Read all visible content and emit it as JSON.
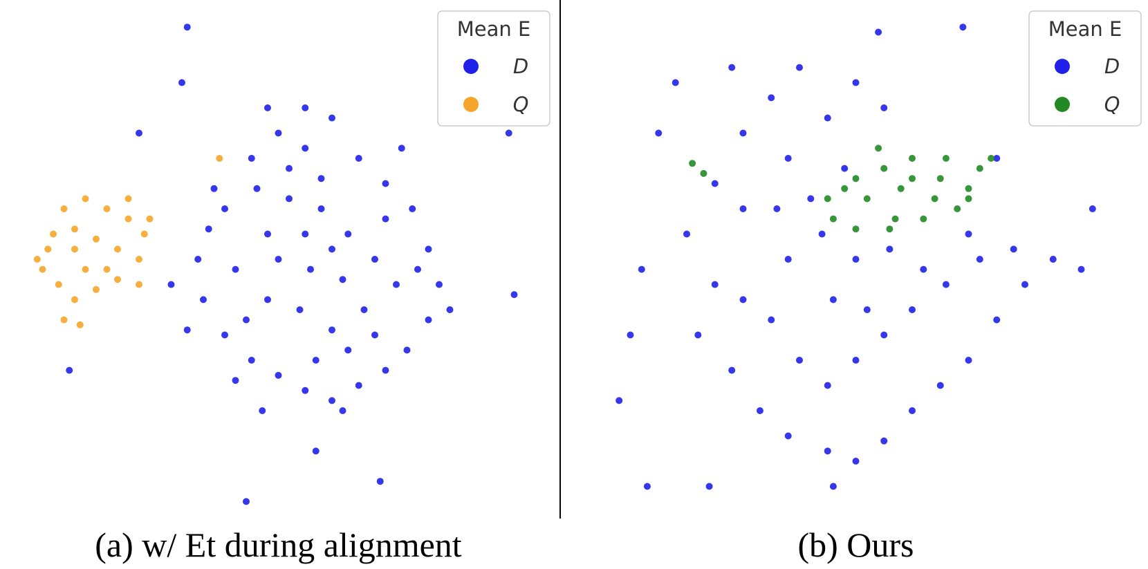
{
  "chart_data": [
    {
      "type": "scatter",
      "caption": "(a) w/ Et during alignment",
      "legend_title": "Mean E",
      "legend": "upper right",
      "xlim": [
        0,
        100
      ],
      "ylim": [
        0,
        100
      ],
      "series": [
        {
          "name": "D",
          "color": "#2020e8",
          "x": [
            40,
            45,
            50,
            55,
            60,
            65,
            70,
            75,
            78,
            80,
            78,
            74,
            70,
            65,
            60,
            55,
            50,
            45,
            40,
            36,
            35,
            37,
            42,
            48,
            52,
            58,
            63,
            68,
            72,
            66,
            60,
            54,
            48,
            44,
            50,
            56,
            62,
            58,
            52,
            46,
            70,
            76,
            42,
            57,
            63,
            68,
            33,
            38,
            55,
            60,
            47,
            62,
            30,
            82,
            73,
            55,
            48,
            33,
            32,
            24,
            93,
            94,
            11,
            44,
            69,
            57
          ],
          "values": [
            60,
            70,
            75,
            72,
            78,
            70,
            65,
            60,
            52,
            45,
            38,
            32,
            28,
            25,
            22,
            24,
            27,
            30,
            35,
            42,
            50,
            56,
            48,
            55,
            62,
            60,
            55,
            50,
            45,
            40,
            36,
            40,
            42,
            38,
            50,
            48,
            46,
            66,
            68,
            64,
            58,
            48,
            26,
            30,
            32,
            35,
            36,
            64,
            55,
            52,
            20,
            20,
            45,
            40,
            72,
            80,
            80,
            96,
            85,
            75,
            75,
            43,
            28,
            2,
            6,
            12
          ]
        },
        {
          "name": "Q",
          "color": "#f5a52a",
          "x": [
            5,
            8,
            10,
            14,
            18,
            22,
            25,
            24,
            20,
            16,
            12,
            9,
            6,
            12,
            16,
            20,
            14,
            18,
            10,
            13,
            22,
            24,
            12,
            7,
            39,
            26
          ],
          "values": [
            50,
            55,
            60,
            62,
            60,
            58,
            55,
            50,
            46,
            44,
            42,
            45,
            48,
            52,
            54,
            52,
            48,
            48,
            38,
            37,
            62,
            45,
            56,
            52,
            70,
            58
          ]
        }
      ]
    },
    {
      "type": "scatter",
      "caption": "(b) Ours",
      "legend_title": "Mean E",
      "legend": "upper right",
      "xlim": [
        0,
        100
      ],
      "ylim": [
        0,
        100
      ],
      "series": [
        {
          "name": "D",
          "color": "#2020e8",
          "x": [
            20,
            25,
            30,
            35,
            40,
            45,
            50,
            55,
            38,
            30,
            25,
            22,
            28,
            33,
            38,
            45,
            50,
            55,
            60,
            65,
            70,
            75,
            80,
            78,
            72,
            66,
            60,
            55,
            50,
            45,
            40,
            35,
            30,
            38,
            44,
            50,
            56,
            62,
            46,
            52,
            42,
            36,
            48,
            70,
            85,
            90,
            12,
            10,
            8,
            15,
            13,
            24,
            46,
            54,
            69,
            92,
            75,
            28,
            18
          ],
          "values": [
            55,
            65,
            75,
            82,
            88,
            78,
            85,
            80,
            70,
            60,
            45,
            35,
            28,
            20,
            15,
            12,
            10,
            14,
            20,
            25,
            30,
            38,
            45,
            52,
            50,
            45,
            40,
            35,
            30,
            25,
            30,
            38,
            42,
            50,
            55,
            50,
            52,
            48,
            42,
            40,
            62,
            60,
            68,
            55,
            50,
            48,
            48,
            35,
            22,
            75,
            5,
            5,
            5,
            95,
            96,
            60,
            70,
            88,
            85
          ]
        },
        {
          "name": "Q",
          "color": "#238a23",
          "x": [
            45,
            50,
            55,
            60,
            65,
            70,
            72,
            68,
            62,
            56,
            50,
            46,
            52,
            58,
            64,
            66,
            54,
            60,
            48,
            70,
            21,
            23,
            74,
            57
          ],
          "values": [
            62,
            66,
            68,
            70,
            66,
            64,
            68,
            60,
            58,
            56,
            56,
            58,
            62,
            64,
            62,
            70,
            72,
            66,
            64,
            62,
            69,
            67,
            70,
            58
          ]
        }
      ]
    }
  ]
}
